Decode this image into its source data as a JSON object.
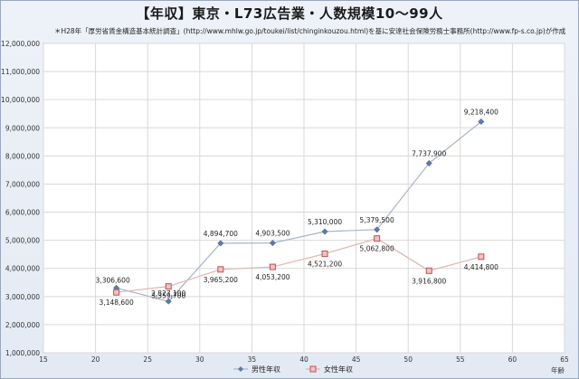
{
  "title": "【年収】東京・L73広告業・人数規模10〜99人",
  "source_note": "＊H28年「厚労省賃金構造基本統計調査」(http://www.mhlw.go.jp/toukei/list/chinginkouzou.html)を基に安達社会保険労務士事務所(http://www.fp-s.co.jp)が作成",
  "chart_data": {
    "type": "line",
    "x": [
      22,
      27,
      32,
      37,
      42,
      47,
      52,
      57
    ],
    "series": [
      {
        "name": "男性年収",
        "color": "#5b7bb0",
        "marker": "diamond",
        "values": [
          3306600,
          2827100,
          4894700,
          4903500,
          5310000,
          5379500,
          7737900,
          9218400
        ],
        "labels": [
          "3,306,600",
          "2,827,100",
          "4,894,700",
          "4,903,500",
          "5,310,000",
          "5,379,500",
          "7,737,900",
          "9,218,400"
        ]
      },
      {
        "name": "女性年収",
        "color": "#c0504d",
        "marker": "square",
        "values": [
          3148600,
          3359700,
          3965200,
          4053200,
          4521200,
          5062800,
          3916800,
          4414800
        ],
        "labels": [
          "3,148,600",
          "3,359,700",
          "3,965,200",
          "4,053,200",
          "4,521,200",
          "5,062,800",
          "3,916,800",
          "4,414,800"
        ]
      }
    ],
    "xlim": [
      15,
      65
    ],
    "ylim": [
      1000000,
      12000000
    ],
    "xticks": [
      "15",
      "20",
      "25",
      "30",
      "35",
      "40",
      "45",
      "50",
      "55",
      "60",
      "65"
    ],
    "yticks": [
      "1,000,000",
      "2,000,000",
      "3,000,000",
      "4,000,000",
      "5,000,000",
      "6,000,000",
      "7,000,000",
      "8,000,000",
      "9,000,000",
      "10,000,000",
      "11,000,000",
      "12,000,000"
    ],
    "xlabel": "年齢",
    "grid": true,
    "legend": "bottom"
  }
}
